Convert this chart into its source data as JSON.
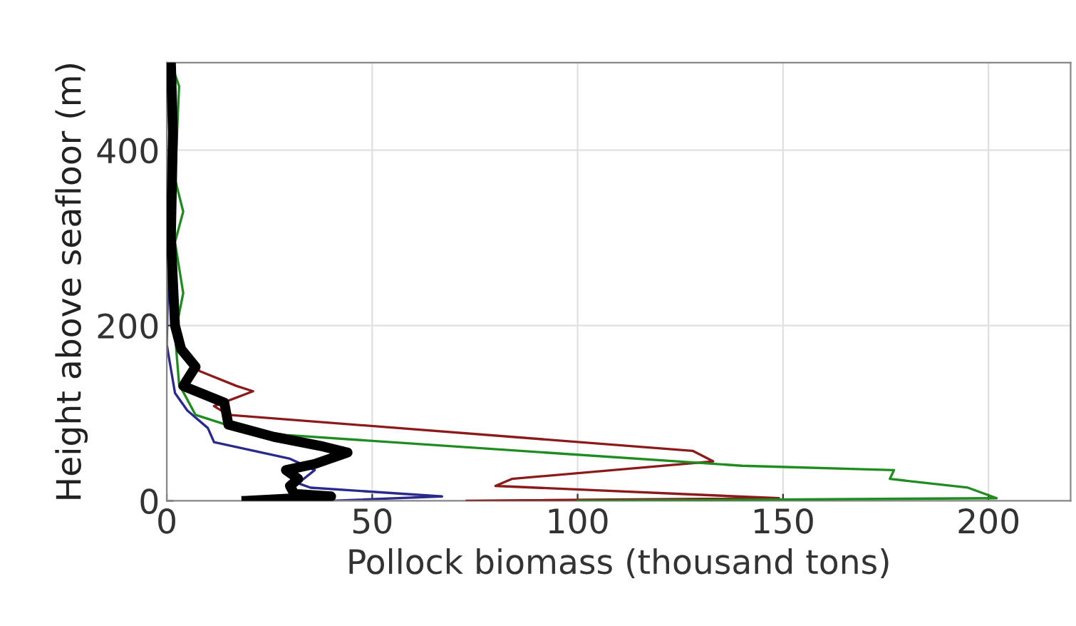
{
  "chart_data": {
    "type": "line",
    "xlabel": "Pollock biomass (thousand tons)",
    "ylabel": "Height above seafloor (m)",
    "xlim": [
      0,
      220
    ],
    "ylim": [
      0,
      500
    ],
    "xticks": [
      0,
      50,
      100,
      150,
      200
    ],
    "yticks": [
      0,
      200,
      400
    ],
    "grid": true,
    "marker": "none",
    "line_style": "solid",
    "series": [
      {
        "color": "#2a2a8c",
        "x": [
          40,
          67,
          35,
          32,
          36,
          30,
          11.5,
          10,
          5,
          2,
          0,
          0.5,
          1
        ],
        "values": [
          0,
          5,
          15,
          20,
          35,
          48,
          67,
          83,
          103,
          123,
          178,
          300,
          500
        ]
      },
      {
        "color": "#8b1a1a",
        "x": [
          73,
          149,
          80,
          84,
          133,
          128,
          15,
          11.5,
          21,
          17,
          8,
          2
        ],
        "values": [
          0,
          3,
          17,
          25,
          45,
          57,
          98,
          108,
          125,
          131,
          148,
          190
        ]
      },
      {
        "color": "#1e8c1e",
        "x": [
          100,
          202,
          195,
          176,
          177,
          140,
          29,
          17,
          7,
          3,
          2,
          4,
          2,
          4,
          2,
          3,
          1
        ],
        "values": [
          0,
          3,
          15,
          25,
          35,
          40,
          75,
          83,
          98,
          133,
          190,
          237,
          295,
          330,
          367,
          473,
          500
        ]
      },
      {
        "color": "#000000",
        "x": [
          19.4,
          40,
          31,
          30,
          32,
          29,
          36,
          44,
          38,
          26,
          15,
          14,
          4,
          7,
          3.5,
          2,
          1,
          1.5,
          1
        ],
        "values": [
          0,
          5,
          8,
          17,
          25,
          35,
          42,
          55,
          62,
          73,
          87,
          112,
          131,
          153,
          173,
          200,
          300,
          420,
          500
        ]
      }
    ]
  }
}
